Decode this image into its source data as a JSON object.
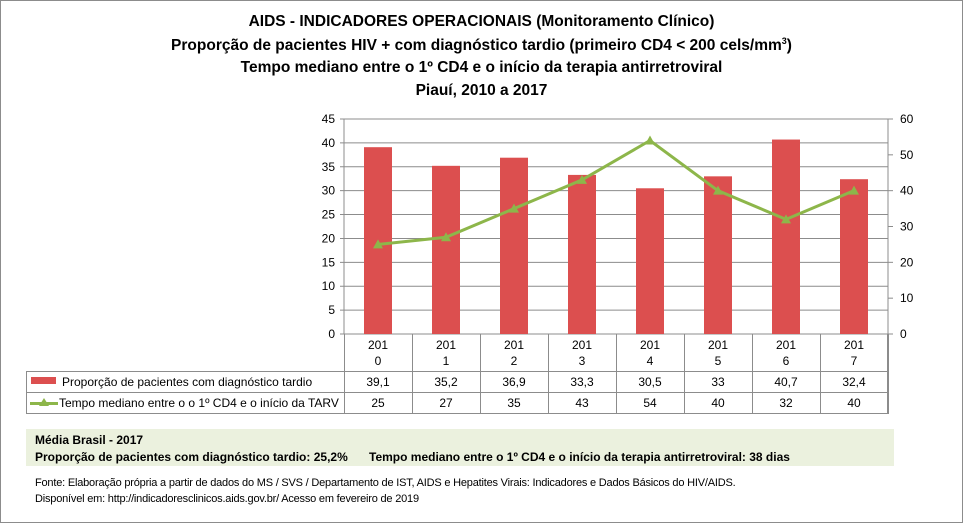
{
  "titles": {
    "line1": "AIDS - INDICADORES OPERACIONAIS (Monitoramento Clínico)",
    "line2": "Proporção de pacientes HIV + com diagnóstico tardio (primeiro CD4 < 200 cels/mm",
    "line2_sup": "3",
    "line2_end": ")",
    "line3": "Tempo mediano entre o 1º CD4 e o início da terapia antirretroviral",
    "line4": "Piauí, 2010 a 2017"
  },
  "chart_data": {
    "type": "bar+line",
    "categories": [
      "201\n0",
      "201\n1",
      "201\n2",
      "201\n3",
      "201\n4",
      "201\n5",
      "201\n6",
      "201\n7"
    ],
    "category_lines": [
      [
        "201",
        "0"
      ],
      [
        "201",
        "1"
      ],
      [
        "201",
        "2"
      ],
      [
        "201",
        "3"
      ],
      [
        "201",
        "4"
      ],
      [
        "201",
        "5"
      ],
      [
        "201",
        "6"
      ],
      [
        "201",
        "7"
      ]
    ],
    "series": [
      {
        "name": "Proporção de pacientes com diagnóstico tardio",
        "type": "bar",
        "axis": "left",
        "color": "#dc4f4f",
        "values": [
          39.1,
          35.2,
          36.9,
          33.3,
          30.5,
          33,
          40.7,
          32.4
        ],
        "labels": [
          "39,1",
          "35,2",
          "36,9",
          "33,3",
          "30,5",
          "33",
          "40,7",
          "32,4"
        ]
      },
      {
        "name": "Tempo mediano entre o o 1º CD4 e o início da TARV",
        "type": "line",
        "axis": "right",
        "color": "#8db64a",
        "marker": "triangle",
        "values": [
          25,
          27,
          35,
          43,
          54,
          40,
          32,
          40
        ],
        "labels": [
          "25",
          "27",
          "35",
          "43",
          "54",
          "40",
          "32",
          "40"
        ]
      }
    ],
    "y_left": {
      "min": 0,
      "max": 45,
      "step": 5,
      "ticks": [
        "0",
        "5",
        "10",
        "15",
        "20",
        "25",
        "30",
        "35",
        "40",
        "45"
      ]
    },
    "y_right": {
      "min": 0,
      "max": 60,
      "step": 10,
      "ticks": [
        "0",
        "10",
        "20",
        "30",
        "40",
        "50",
        "60"
      ]
    },
    "grid": true,
    "legend": "data-table"
  },
  "media": {
    "title": "Média Brasil - 2017",
    "proporcao": "Proporção de pacientes com diagnóstico  tardio: 25,2%",
    "tempo": "Tempo mediano entre o 1º CD4 e o início da terapia antirretroviral: 38 dias"
  },
  "source": {
    "line1": "Fonte: Elaboração própria a partir de dados do  MS / SVS / Departamento de IST, AIDS e Hepatites Virais: Indicadores e Dados Básicos do HIV/AIDS.",
    "line2": "Disponível em: http://indicadoresclinicos.aids.gov.br/ Acesso em fevereiro de 2019"
  }
}
